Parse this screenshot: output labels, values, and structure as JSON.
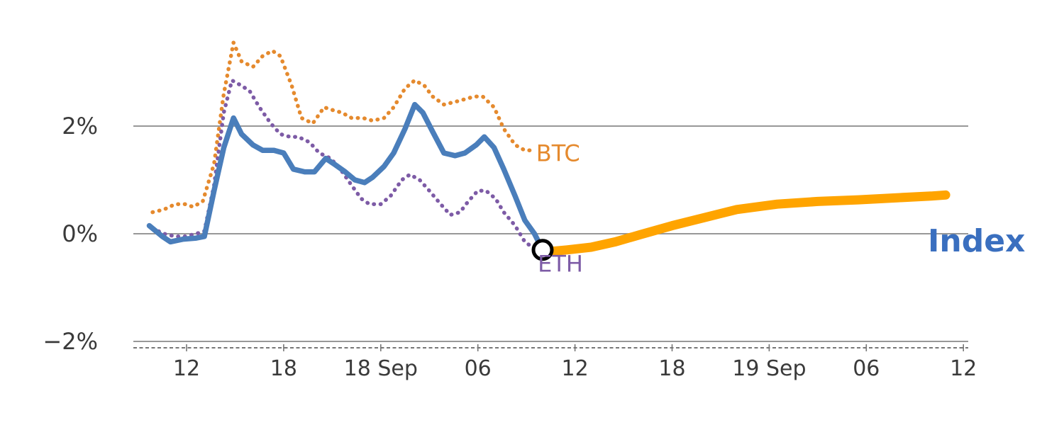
{
  "chart_data": {
    "type": "line",
    "title": "",
    "x_axis": {
      "range": [
        -3.2,
        48.3
      ],
      "tick_hours": [
        0,
        6,
        12,
        18,
        24,
        30,
        36,
        42,
        48
      ],
      "tick_labels": [
        "12",
        "18",
        "18 Sep",
        "06",
        "12",
        "18",
        "19 Sep",
        "06",
        "12"
      ]
    },
    "y_axis": {
      "unit": "percent",
      "tick_values": [
        2,
        0,
        -2
      ],
      "tick_labels": [
        "2%",
        "0%",
        "−2%"
      ],
      "gridlines": [
        2,
        0
      ],
      "bottom_gridline": -2
    },
    "series": [
      {
        "name": "BTC",
        "style": "dotted",
        "color": "#E58A2E",
        "width": 5.5,
        "points": [
          [
            -2.1,
            0.4
          ],
          [
            -1.4,
            0.45
          ],
          [
            -0.7,
            0.55
          ],
          [
            -0.1,
            0.55
          ],
          [
            0.4,
            0.5
          ],
          [
            1.0,
            0.6
          ],
          [
            1.7,
            1.3
          ],
          [
            2.3,
            2.6
          ],
          [
            2.9,
            3.55
          ],
          [
            3.4,
            3.2
          ],
          [
            4.1,
            3.1
          ],
          [
            4.7,
            3.3
          ],
          [
            5.3,
            3.4
          ],
          [
            5.8,
            3.3
          ],
          [
            6.5,
            2.75
          ],
          [
            7.1,
            2.15
          ],
          [
            7.8,
            2.05
          ],
          [
            8.5,
            2.35
          ],
          [
            9.0,
            2.3
          ],
          [
            9.6,
            2.25
          ],
          [
            10.2,
            2.15
          ],
          [
            10.9,
            2.15
          ],
          [
            11.5,
            2.1
          ],
          [
            12.2,
            2.15
          ],
          [
            12.8,
            2.35
          ],
          [
            13.5,
            2.7
          ],
          [
            14.1,
            2.85
          ],
          [
            14.7,
            2.75
          ],
          [
            15.2,
            2.55
          ],
          [
            15.9,
            2.4
          ],
          [
            16.6,
            2.45
          ],
          [
            17.2,
            2.5
          ],
          [
            17.8,
            2.55
          ],
          [
            18.3,
            2.55
          ],
          [
            19.0,
            2.35
          ],
          [
            19.6,
            1.95
          ],
          [
            20.3,
            1.65
          ],
          [
            20.9,
            1.55
          ],
          [
            21.4,
            1.55
          ]
        ]
      },
      {
        "name": "ETH",
        "style": "dotted",
        "color": "#7D5BA6",
        "width": 5.5,
        "points": [
          [
            -2.1,
            0.1
          ],
          [
            -1.4,
            0.0
          ],
          [
            -0.7,
            -0.05
          ],
          [
            -0.1,
            -0.05
          ],
          [
            0.6,
            0.0
          ],
          [
            1.1,
            0.05
          ],
          [
            1.7,
            0.9
          ],
          [
            2.3,
            2.25
          ],
          [
            2.8,
            2.85
          ],
          [
            3.4,
            2.75
          ],
          [
            3.9,
            2.65
          ],
          [
            4.5,
            2.35
          ],
          [
            5.2,
            2.05
          ],
          [
            5.8,
            1.85
          ],
          [
            6.4,
            1.8
          ],
          [
            6.9,
            1.8
          ],
          [
            7.6,
            1.7
          ],
          [
            8.2,
            1.5
          ],
          [
            8.9,
            1.4
          ],
          [
            9.5,
            1.2
          ],
          [
            10.2,
            0.9
          ],
          [
            10.8,
            0.65
          ],
          [
            11.3,
            0.55
          ],
          [
            12.0,
            0.55
          ],
          [
            12.6,
            0.7
          ],
          [
            13.3,
            1.0
          ],
          [
            13.8,
            1.1
          ],
          [
            14.4,
            1.0
          ],
          [
            15.0,
            0.8
          ],
          [
            15.7,
            0.55
          ],
          [
            16.3,
            0.35
          ],
          [
            16.9,
            0.4
          ],
          [
            17.4,
            0.6
          ],
          [
            18.0,
            0.8
          ],
          [
            18.5,
            0.8
          ],
          [
            19.1,
            0.65
          ],
          [
            19.6,
            0.4
          ],
          [
            20.3,
            0.15
          ],
          [
            20.9,
            -0.15
          ],
          [
            21.6,
            -0.3
          ],
          [
            22.0,
            -0.35
          ]
        ]
      },
      {
        "name": "Index",
        "style": "solid",
        "color": "#4A7EBB",
        "width": 7.5,
        "points": [
          [
            -2.3,
            0.15
          ],
          [
            -1.5,
            -0.05
          ],
          [
            -1.0,
            -0.15
          ],
          [
            -0.2,
            -0.1
          ],
          [
            0.6,
            -0.08
          ],
          [
            1.1,
            -0.05
          ],
          [
            1.7,
            0.8
          ],
          [
            2.3,
            1.6
          ],
          [
            2.9,
            2.15
          ],
          [
            3.4,
            1.85
          ],
          [
            4.1,
            1.65
          ],
          [
            4.7,
            1.55
          ],
          [
            5.4,
            1.55
          ],
          [
            6.0,
            1.5
          ],
          [
            6.6,
            1.2
          ],
          [
            7.3,
            1.15
          ],
          [
            7.9,
            1.15
          ],
          [
            8.6,
            1.4
          ],
          [
            9.1,
            1.3
          ],
          [
            9.8,
            1.15
          ],
          [
            10.4,
            1.0
          ],
          [
            11.0,
            0.95
          ],
          [
            11.5,
            1.05
          ],
          [
            12.2,
            1.25
          ],
          [
            12.8,
            1.5
          ],
          [
            13.5,
            1.95
          ],
          [
            14.1,
            2.4
          ],
          [
            14.6,
            2.25
          ],
          [
            15.2,
            1.9
          ],
          [
            15.9,
            1.5
          ],
          [
            16.6,
            1.45
          ],
          [
            17.2,
            1.5
          ],
          [
            17.9,
            1.65
          ],
          [
            18.4,
            1.8
          ],
          [
            19.0,
            1.6
          ],
          [
            19.6,
            1.2
          ],
          [
            20.3,
            0.7
          ],
          [
            20.9,
            0.25
          ],
          [
            21.5,
            0.0
          ],
          [
            22.0,
            -0.3
          ]
        ]
      },
      {
        "name": "Index-forward",
        "style": "solid",
        "color": "#FFA400",
        "width": 13,
        "points": [
          [
            21.7,
            -0.35
          ],
          [
            23.5,
            -0.3
          ],
          [
            25.0,
            -0.25
          ],
          [
            26.5,
            -0.15
          ],
          [
            28.0,
            -0.02
          ],
          [
            30.0,
            0.15
          ],
          [
            32.0,
            0.3
          ],
          [
            34.0,
            0.45
          ],
          [
            36.5,
            0.55
          ],
          [
            39.0,
            0.6
          ],
          [
            41.5,
            0.63
          ],
          [
            44.0,
            0.67
          ],
          [
            46.0,
            0.7
          ],
          [
            46.9,
            0.72
          ]
        ]
      }
    ],
    "annotations": {
      "btc_label": {
        "text": "BTC",
        "x": 21.6,
        "y": 1.5,
        "color": "#E58A2E",
        "size": 32,
        "bold": false
      },
      "eth_label": {
        "text": "ETH",
        "x": 21.7,
        "y": -0.55,
        "color": "#7D5BA6",
        "size": 32,
        "bold": false
      },
      "index_label": {
        "text": "Index",
        "x": 45.8,
        "y": -0.12,
        "color": "#3A6FBF",
        "size": 44,
        "bold": true
      },
      "marker": {
        "x": 22.0,
        "y": -0.3,
        "radius": 13,
        "stroke": "#000000"
      }
    },
    "colors": {
      "grid": "#8A8A8A",
      "axis_dashed": "#777777",
      "tick_text": "#3A3A3A",
      "background": "#FFFFFF"
    },
    "legend_position": "inline-labels",
    "grid": true
  }
}
